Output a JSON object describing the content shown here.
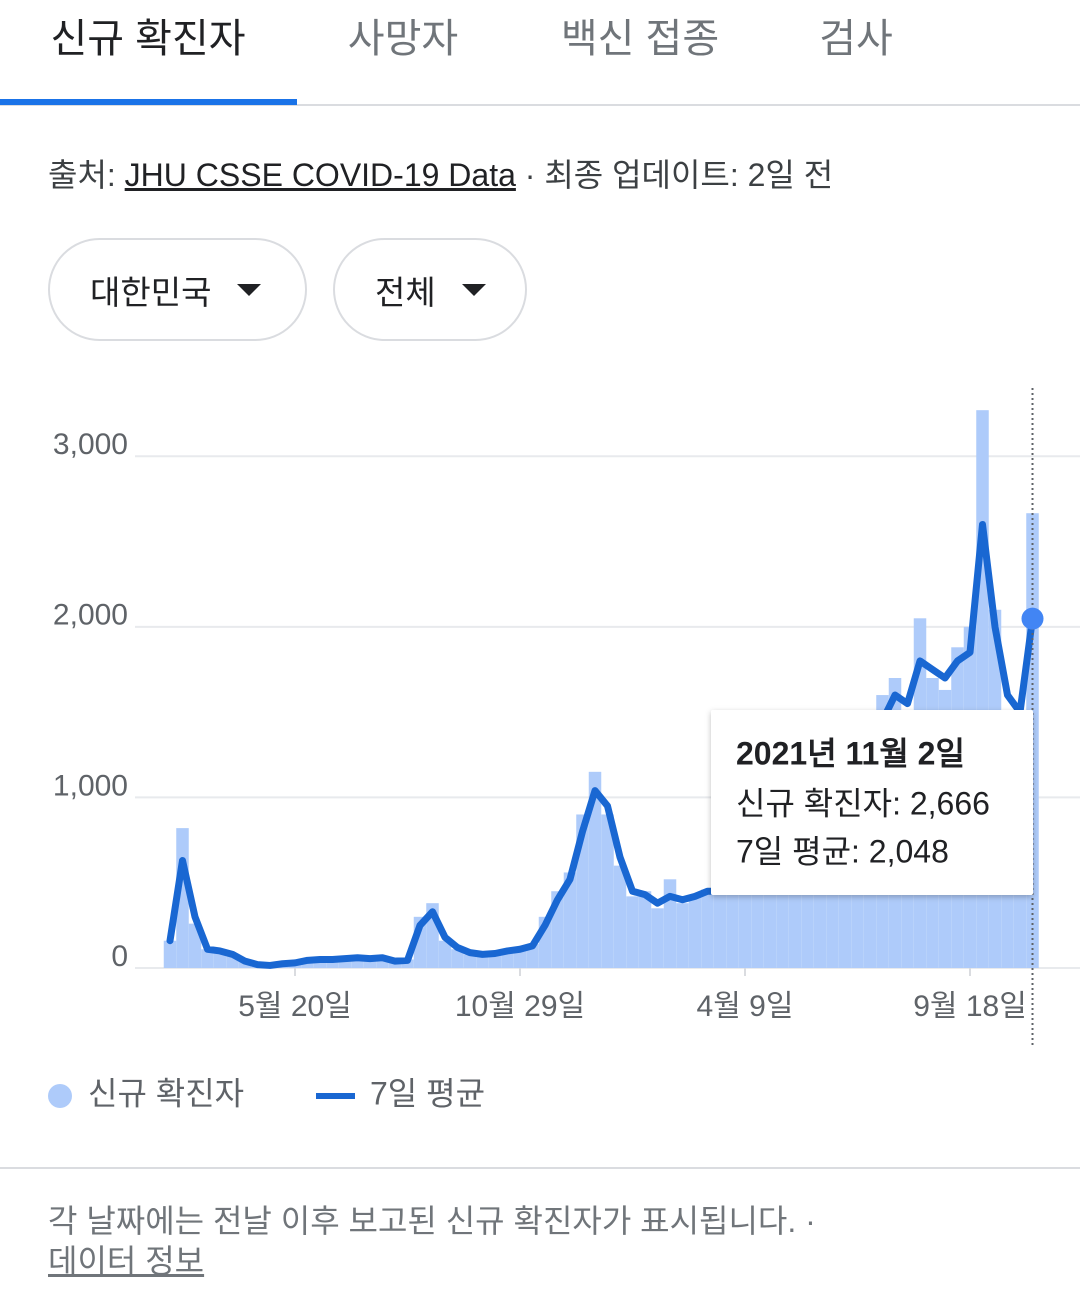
{
  "tabs": [
    {
      "label": "신규 확진자",
      "active": true
    },
    {
      "label": "사망자"
    },
    {
      "label": "백신 접종"
    },
    {
      "label": "검사"
    }
  ],
  "source": {
    "prefix": "출처:",
    "link": "JHU CSSE COVID-19 Data",
    "suffix": "· 최종 업데이트: 2일 전"
  },
  "filters": [
    "대한민국",
    "전체"
  ],
  "chart_data": {
    "type": "combo",
    "categories": [
      null,
      null,
      null,
      null,
      null,
      null,
      null,
      null,
      null,
      null,
      "5월 20일",
      null,
      null,
      null,
      null,
      null,
      null,
      null,
      null,
      null,
      null,
      null,
      null,
      null,
      null,
      null,
      null,
      null,
      "10월 29일",
      null,
      null,
      null,
      null,
      null,
      null,
      null,
      null,
      null,
      null,
      null,
      null,
      null,
      null,
      null,
      null,
      null,
      "4월 9일",
      null,
      null,
      null,
      null,
      null,
      null,
      null,
      null,
      null,
      null,
      null,
      null,
      null,
      null,
      null,
      null,
      null,
      "9월 18일",
      null,
      null,
      null,
      null,
      null
    ],
    "series": [
      {
        "name": "신규 확진자",
        "type": "bar",
        "color": "#aecbfa",
        "values": [
          160,
          820,
          260,
          110,
          100,
          70,
          40,
          20,
          15,
          30,
          25,
          50,
          55,
          45,
          60,
          55,
          50,
          70,
          35,
          50,
          300,
          380,
          160,
          110,
          80,
          70,
          95,
          110,
          100,
          140,
          300,
          450,
          560,
          900,
          1150,
          900,
          600,
          420,
          450,
          350,
          520,
          380,
          430,
          460,
          430,
          500,
          580,
          640,
          600,
          690,
          570,
          540,
          560,
          640,
          600,
          780,
          1250,
          1600,
          1700,
          1500,
          2050,
          1700,
          1630,
          1880,
          2000,
          3270,
          2100,
          1500,
          1400,
          2666
        ]
      },
      {
        "name": "7일 평균",
        "type": "line",
        "color": "#1967d2",
        "values": [
          160,
          630,
          300,
          110,
          100,
          80,
          40,
          20,
          15,
          25,
          30,
          45,
          50,
          50,
          55,
          60,
          55,
          60,
          40,
          45,
          250,
          330,
          180,
          120,
          90,
          80,
          85,
          100,
          110,
          130,
          250,
          400,
          520,
          800,
          1040,
          950,
          650,
          450,
          430,
          380,
          420,
          400,
          420,
          450,
          450,
          470,
          550,
          600,
          620,
          640,
          600,
          560,
          550,
          600,
          620,
          700,
          1100,
          1450,
          1600,
          1550,
          1800,
          1750,
          1700,
          1800,
          1850,
          2600,
          2000,
          1600,
          1500,
          2048
        ]
      }
    ],
    "ylim": [
      0,
      3400
    ],
    "yticks": [
      0,
      {
        "value": 1000,
        "label": "1,000"
      },
      {
        "value": 2000,
        "label": "2,000"
      },
      {
        "value": 3000,
        "label": "3,000"
      }
    ],
    "grid": true,
    "tooltip": {
      "title": "2021년 11월 2일",
      "lines": [
        "신규 확진자: 2,666",
        "7일 평균: 2,048"
      ]
    }
  },
  "footer": {
    "note": "각 날짜에는 전날 이후 보고된 신규 확진자가 표시됩니다. ·",
    "link": "데이터 정보"
  }
}
